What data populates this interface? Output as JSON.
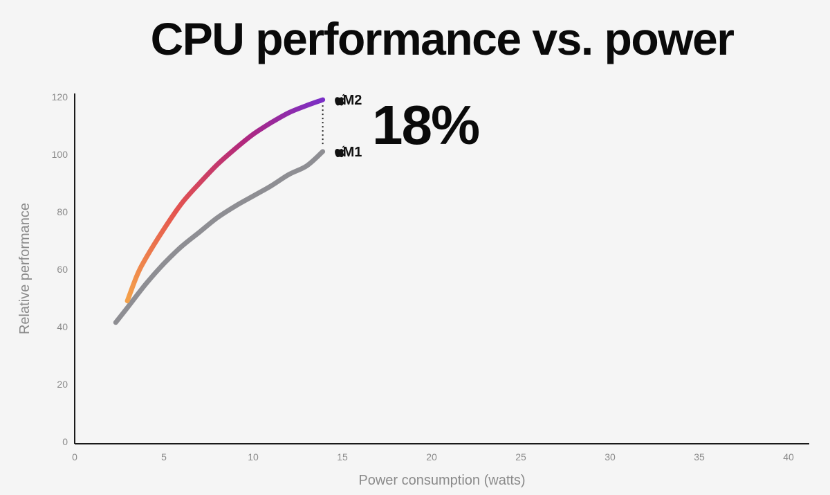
{
  "chart_data": {
    "type": "line",
    "title": "CPU performance vs. power",
    "xlabel": "Power consumption (watts)",
    "ylabel": "Relative performance",
    "xlim": [
      0,
      40
    ],
    "ylim": [
      0,
      120
    ],
    "x_ticks": [
      "0",
      "5",
      "10",
      "15",
      "20",
      "25",
      "30",
      "35",
      "40"
    ],
    "y_ticks": [
      "0",
      "20",
      "40",
      "60",
      "80",
      "100",
      "120"
    ],
    "grid": false,
    "legend": "none",
    "series": [
      {
        "name": "M1",
        "color": "#8e8e93",
        "points": [
          [
            2.3,
            41.5
          ],
          [
            3,
            47
          ],
          [
            4,
            55
          ],
          [
            5,
            62
          ],
          [
            6,
            68
          ],
          [
            7,
            73
          ],
          [
            8,
            78
          ],
          [
            9,
            82
          ],
          [
            10,
            85.5
          ],
          [
            11,
            89
          ],
          [
            12,
            93
          ],
          [
            13,
            96
          ],
          [
            13.9,
            101
          ]
        ]
      },
      {
        "name": "M2",
        "gradient": [
          "#f4a14a",
          "#e4544f",
          "#b0277e",
          "#7a2fc7"
        ],
        "points": [
          [
            2.95,
            49
          ],
          [
            3.5,
            58
          ],
          [
            4,
            64
          ],
          [
            5,
            74
          ],
          [
            6,
            83
          ],
          [
            7,
            90
          ],
          [
            8,
            96.5
          ],
          [
            9,
            102
          ],
          [
            10,
            107
          ],
          [
            11,
            111
          ],
          [
            12,
            114.5
          ],
          [
            13,
            117
          ],
          [
            13.9,
            119
          ]
        ]
      }
    ],
    "annotations": [
      {
        "text": "18%",
        "kind": "difference",
        "between": [
          "M1",
          "M2"
        ],
        "at_x": 13.9
      }
    ]
  }
}
